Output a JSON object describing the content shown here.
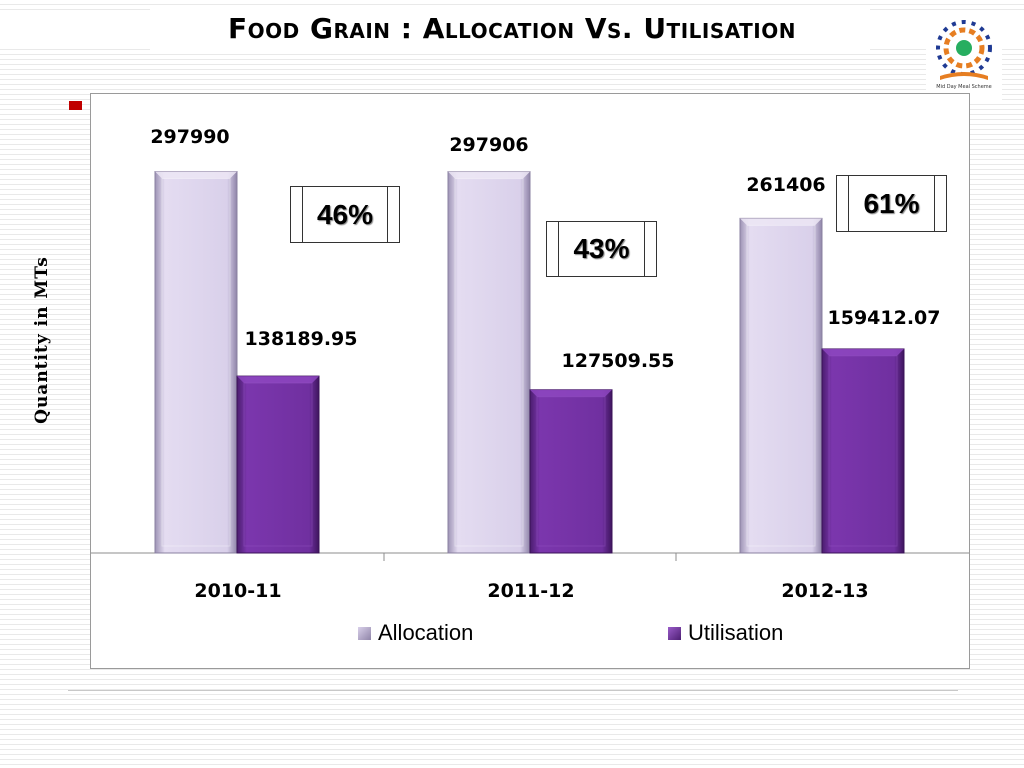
{
  "page": {
    "title": "Food Grain : Allocation Vs. Utilisation",
    "logo_caption": "Mid Day Meal Scheme"
  },
  "chart_data": {
    "type": "bar",
    "title": "",
    "xlabel": "",
    "ylabel": "Quantity in MTs",
    "categories": [
      "2010-11",
      "2011-12",
      "2012-13"
    ],
    "series": [
      {
        "name": "Allocation",
        "values": [
          297990,
          297906,
          261406
        ],
        "labels": [
          "297990",
          "297906",
          "261406"
        ],
        "color": "#d9d0ea"
      },
      {
        "name": "Utilisation",
        "values": [
          138189.95,
          127509.55,
          159412.07
        ],
        "labels": [
          "138189.95",
          "127509.55",
          "159412.07"
        ],
        "color": "#7030a0"
      }
    ],
    "annotations": [
      "46%",
      "43%",
      "61%"
    ],
    "ylim": [
      0,
      330000
    ],
    "grid": false,
    "legend": "bottom"
  }
}
